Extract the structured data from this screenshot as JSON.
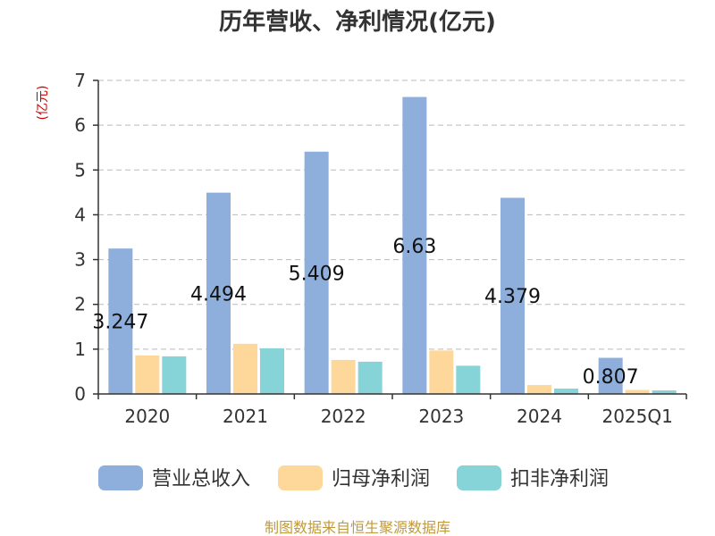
{
  "chart_data": {
    "type": "bar",
    "title": "历年营收、净利情况(亿元)",
    "unit_label": "(亿元)",
    "categories": [
      "2020",
      "2021",
      "2022",
      "2023",
      "2024",
      "2025Q1"
    ],
    "ylim": [
      0,
      7
    ],
    "yticks": [
      "0",
      "1",
      "2",
      "3",
      "4",
      "5",
      "6",
      "7"
    ],
    "grid": true,
    "legend_position": "bottom",
    "series": [
      {
        "name": "营业总收入",
        "color": "#8EAFDC",
        "values": [
          3.247,
          4.494,
          5.409,
          6.63,
          4.379,
          0.807
        ],
        "labels": [
          "3.247",
          "4.494",
          "5.409",
          "6.63",
          "4.379",
          "0.807"
        ]
      },
      {
        "name": "归母净利润",
        "color": "#FDD89A",
        "values": [
          0.86,
          1.12,
          0.76,
          0.97,
          0.2,
          0.09
        ]
      },
      {
        "name": "扣非净利润",
        "color": "#86D3D8",
        "values": [
          0.84,
          1.02,
          0.72,
          0.63,
          0.12,
          0.08
        ]
      }
    ],
    "source": "制图数据来自恒生聚源数据库",
    "colors": {
      "unit": "#CC0000",
      "source": "#C09A3C",
      "grid": "#BBBBBB",
      "axis": "#333333"
    }
  }
}
